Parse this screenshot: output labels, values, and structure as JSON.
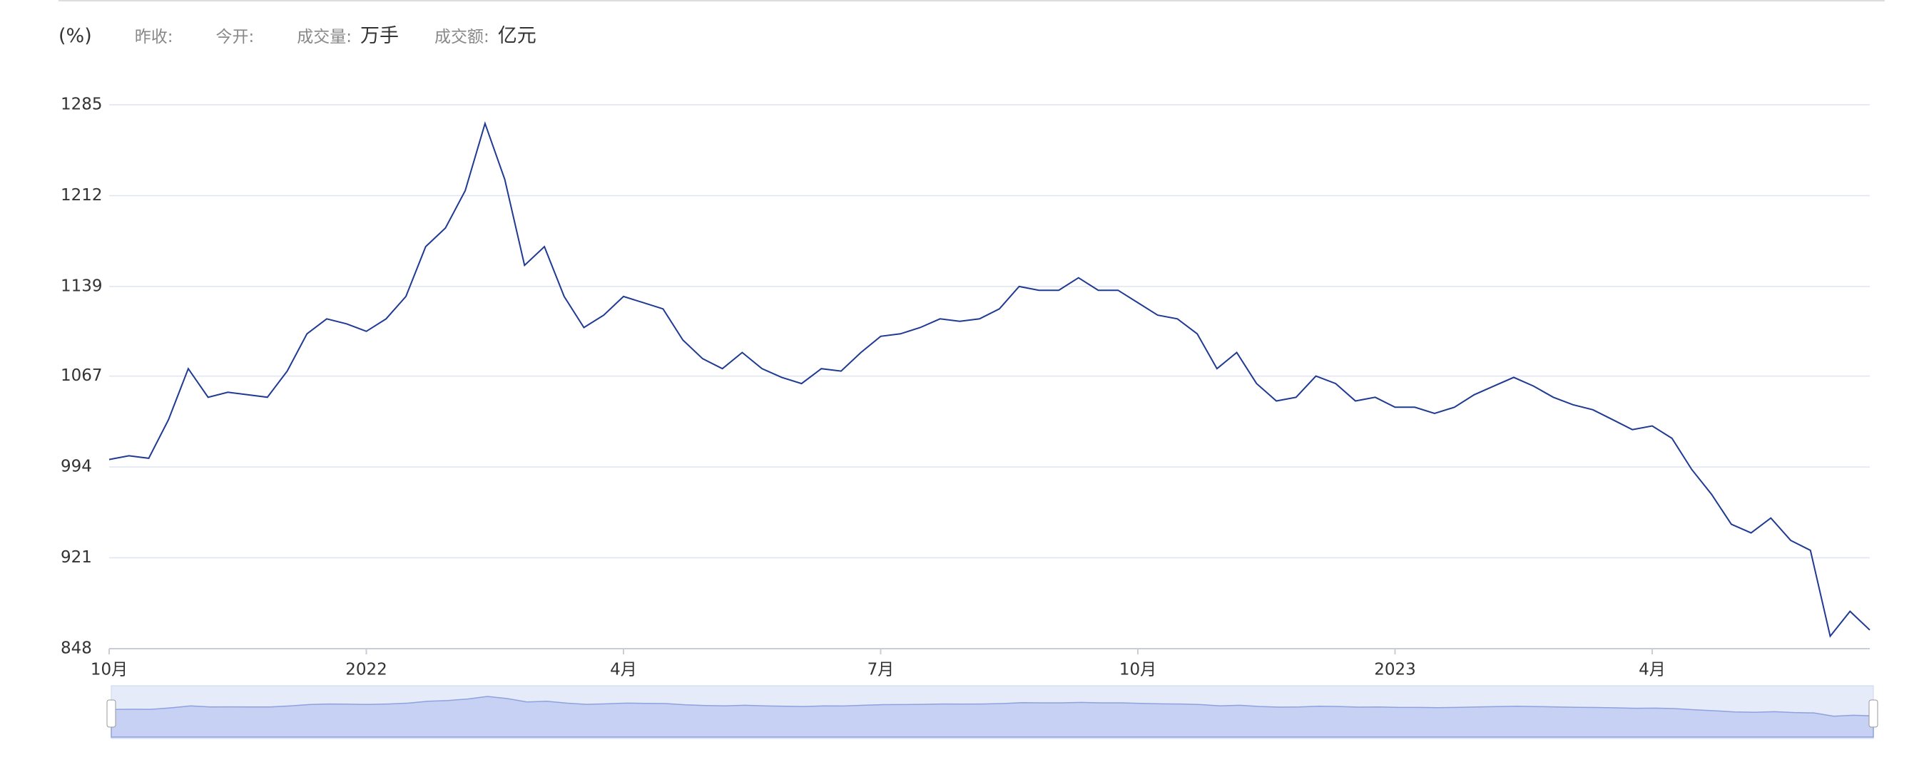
{
  "header": {
    "unit": "(%)",
    "items": [
      {
        "label": "昨收:"
      },
      {
        "label": "今开:"
      },
      {
        "label": "成交量:",
        "value": "万手"
      },
      {
        "label": "成交额:",
        "value": "亿元"
      }
    ]
  },
  "chart_data": {
    "type": "line",
    "categories": [
      "10月",
      null,
      null,
      null,
      null,
      null,
      null,
      null,
      null,
      null,
      null,
      null,
      null,
      "2022",
      null,
      null,
      null,
      null,
      null,
      null,
      null,
      null,
      null,
      null,
      null,
      null,
      "4月",
      null,
      null,
      null,
      null,
      null,
      null,
      null,
      null,
      null,
      null,
      null,
      null,
      "7月",
      null,
      null,
      null,
      null,
      null,
      null,
      null,
      null,
      null,
      null,
      null,
      null,
      "10月",
      null,
      null,
      null,
      null,
      null,
      null,
      null,
      null,
      null,
      null,
      null,
      null,
      "2023",
      null,
      null,
      null,
      null,
      null,
      null,
      null,
      null,
      null,
      null,
      null,
      null,
      "4月",
      null,
      null,
      null,
      null,
      null,
      null,
      null,
      null,
      null,
      null,
      null
    ],
    "series": [
      {
        "color": "#1f3a93",
        "values": [
          1000,
          1003,
          1001,
          1032,
          1073,
          1050,
          1054,
          1052,
          1050,
          1071,
          1101,
          1113,
          1109,
          1103,
          1113,
          1131,
          1171,
          1186,
          1216,
          1270,
          1225,
          1156,
          1171,
          1131,
          1106,
          1116,
          1131,
          1126,
          1121,
          1096,
          1081,
          1073,
          1086,
          1073,
          1066,
          1061,
          1073,
          1071,
          1086,
          1099,
          1101,
          1106,
          1113,
          1111,
          1113,
          1121,
          1139,
          1136,
          1136,
          1146,
          1136,
          1136,
          1126,
          1116,
          1113,
          1101,
          1073,
          1086,
          1061,
          1047,
          1050,
          1067,
          1061,
          1047,
          1050,
          1042,
          1042,
          1037,
          1042,
          1052,
          1059,
          1066,
          1059,
          1050,
          1044,
          1040,
          1032,
          1024,
          1027,
          1017,
          992,
          972,
          948,
          941,
          953,
          935,
          927,
          858,
          878,
          863
        ]
      }
    ],
    "ylim": [
      848,
      1285
    ],
    "yticks": [
      848,
      921,
      994,
      1067,
      1139,
      1212,
      1285
    ],
    "grid": true
  }
}
